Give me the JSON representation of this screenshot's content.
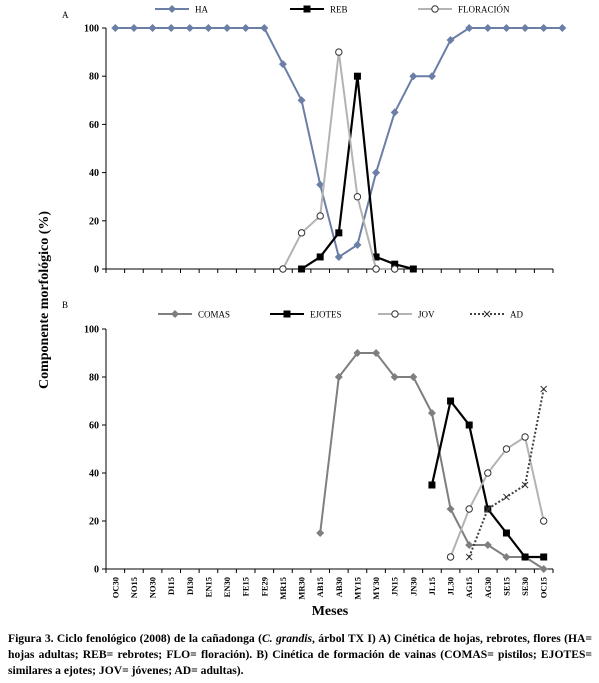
{
  "chart_data": [
    {
      "type": "line",
      "panel_label": "A",
      "ylabel": "Componente morfológico (%)",
      "ylim": [
        0,
        100
      ],
      "yticks": [
        0,
        20,
        40,
        60,
        80,
        100
      ],
      "grid": false,
      "legend_position": "top",
      "series": [
        {
          "name": "HA",
          "color": "#6b7ea6",
          "marker": "diamond",
          "values": [
            100,
            100,
            100,
            100,
            100,
            100,
            100,
            100,
            100,
            85,
            70,
            35,
            5,
            10,
            40,
            65,
            80,
            80,
            95,
            100,
            100,
            100,
            100,
            100,
            100
          ]
        },
        {
          "name": "REB",
          "color": "#000000",
          "marker": "square",
          "values": [
            null,
            null,
            null,
            null,
            null,
            null,
            null,
            null,
            null,
            null,
            0,
            5,
            15,
            80,
            5,
            2,
            0,
            null,
            null,
            null,
            null,
            null,
            null,
            null,
            null
          ]
        },
        {
          "name": "FLORACIÓN",
          "color": "#b3b3b3",
          "marker": "circle-open",
          "values": [
            null,
            null,
            null,
            null,
            null,
            null,
            null,
            null,
            null,
            0,
            15,
            22,
            90,
            30,
            0,
            0,
            null,
            null,
            null,
            null,
            null,
            null,
            null,
            null,
            null
          ]
        }
      ]
    },
    {
      "type": "line",
      "panel_label": "B",
      "xlabel": "Meses",
      "ylim": [
        0,
        100
      ],
      "yticks": [
        0,
        20,
        40,
        60,
        80,
        100
      ],
      "grid": false,
      "legend_position": "top",
      "categories": [
        "OC30",
        "NO15",
        "NO30",
        "DI15",
        "DI30",
        "EN15",
        "EN30",
        "FE15",
        "FE29",
        "MR15",
        "MR30",
        "AB15",
        "AB30",
        "MY15",
        "MY30",
        "JN15",
        "JN30",
        "JL15",
        "JL30",
        "AG15",
        "AG30",
        "SE15",
        "SE30",
        "OC15"
      ],
      "series": [
        {
          "name": "COMAS",
          "color": "#7f7f7f",
          "marker": "diamond",
          "values": [
            null,
            null,
            null,
            null,
            null,
            null,
            null,
            null,
            null,
            null,
            null,
            15,
            80,
            90,
            90,
            80,
            80,
            65,
            25,
            10,
            10,
            5,
            5,
            0
          ]
        },
        {
          "name": "EJOTES",
          "color": "#000000",
          "marker": "square",
          "values": [
            null,
            null,
            null,
            null,
            null,
            null,
            null,
            null,
            null,
            null,
            null,
            null,
            null,
            null,
            null,
            null,
            null,
            35,
            70,
            60,
            25,
            15,
            5,
            5
          ]
        },
        {
          "name": "JOV",
          "color": "#b3b3b3",
          "marker": "circle-open",
          "values": [
            null,
            null,
            null,
            null,
            null,
            null,
            null,
            null,
            null,
            null,
            null,
            null,
            null,
            null,
            null,
            null,
            null,
            null,
            5,
            25,
            40,
            50,
            55,
            20
          ]
        },
        {
          "name": "AD",
          "color": "#404040",
          "marker": "x",
          "dashed": true,
          "values": [
            null,
            null,
            null,
            null,
            null,
            null,
            null,
            null,
            null,
            null,
            null,
            null,
            null,
            null,
            null,
            null,
            null,
            null,
            null,
            5,
            25,
            30,
            35,
            75
          ]
        }
      ]
    }
  ],
  "caption": {
    "p1": "Figura 3. Ciclo fenológico (2008) de la cañadonga (",
    "p2": "C. grandis",
    "p3": ", árbol TX I) A) Cinética de hojas, rebrotes, flores (HA= hojas adultas; REB= rebrotes; FLO= floración). B) Cinética de formación de vainas (COMAS= pistilos; EJOTES= similares a ejotes; JOV= jóvenes; AD= adultas)."
  }
}
